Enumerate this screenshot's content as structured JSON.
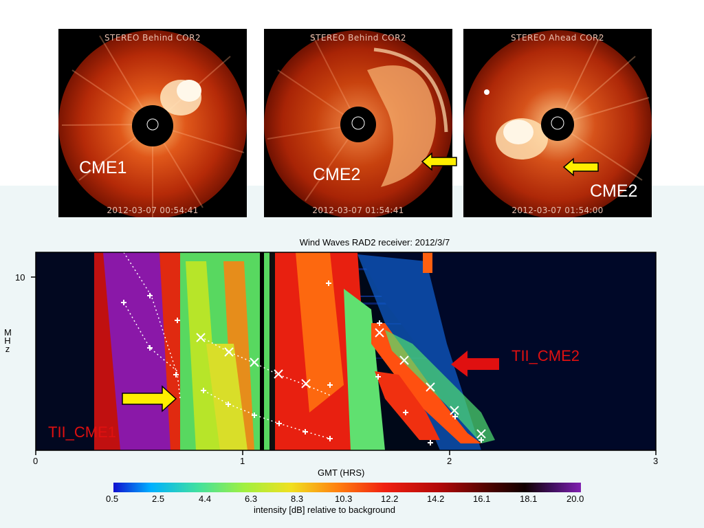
{
  "panels": [
    {
      "title": "STEREO Behind COR2",
      "date": "2012-03-07 00:54:41",
      "label": "CME1"
    },
    {
      "title": "STEREO Behind COR2",
      "date": "2012-03-07 01:54:41",
      "label": "CME2"
    },
    {
      "title": "STEREO Ahead COR2",
      "date": "2012-03-07 01:54:00",
      "label": "CME2"
    }
  ],
  "spectrogram": {
    "title": "Wind Waves RAD2 receiver: 2012/3/7",
    "ylabel": "MHz",
    "ytick": "10",
    "xlabel": "GMT (HRS)",
    "xticks": [
      "0",
      "1",
      "2",
      "3"
    ],
    "colorbar_ticks": [
      "0.5",
      "2.5",
      "4.4",
      "6.3",
      "8.3",
      "10.3",
      "12.2",
      "14.2",
      "16.1",
      "18.1",
      "20.0"
    ],
    "colorbar_label": "intensity [dB] relative to background",
    "annotation_cme1": "TII_CME1",
    "annotation_cme2": "TII_CME2"
  },
  "colors": {
    "arrow_yellow": "#ffee00",
    "arrow_red": "#e01010",
    "annotation_red": "#e01010",
    "burst_purple": "#8a18a8"
  }
}
